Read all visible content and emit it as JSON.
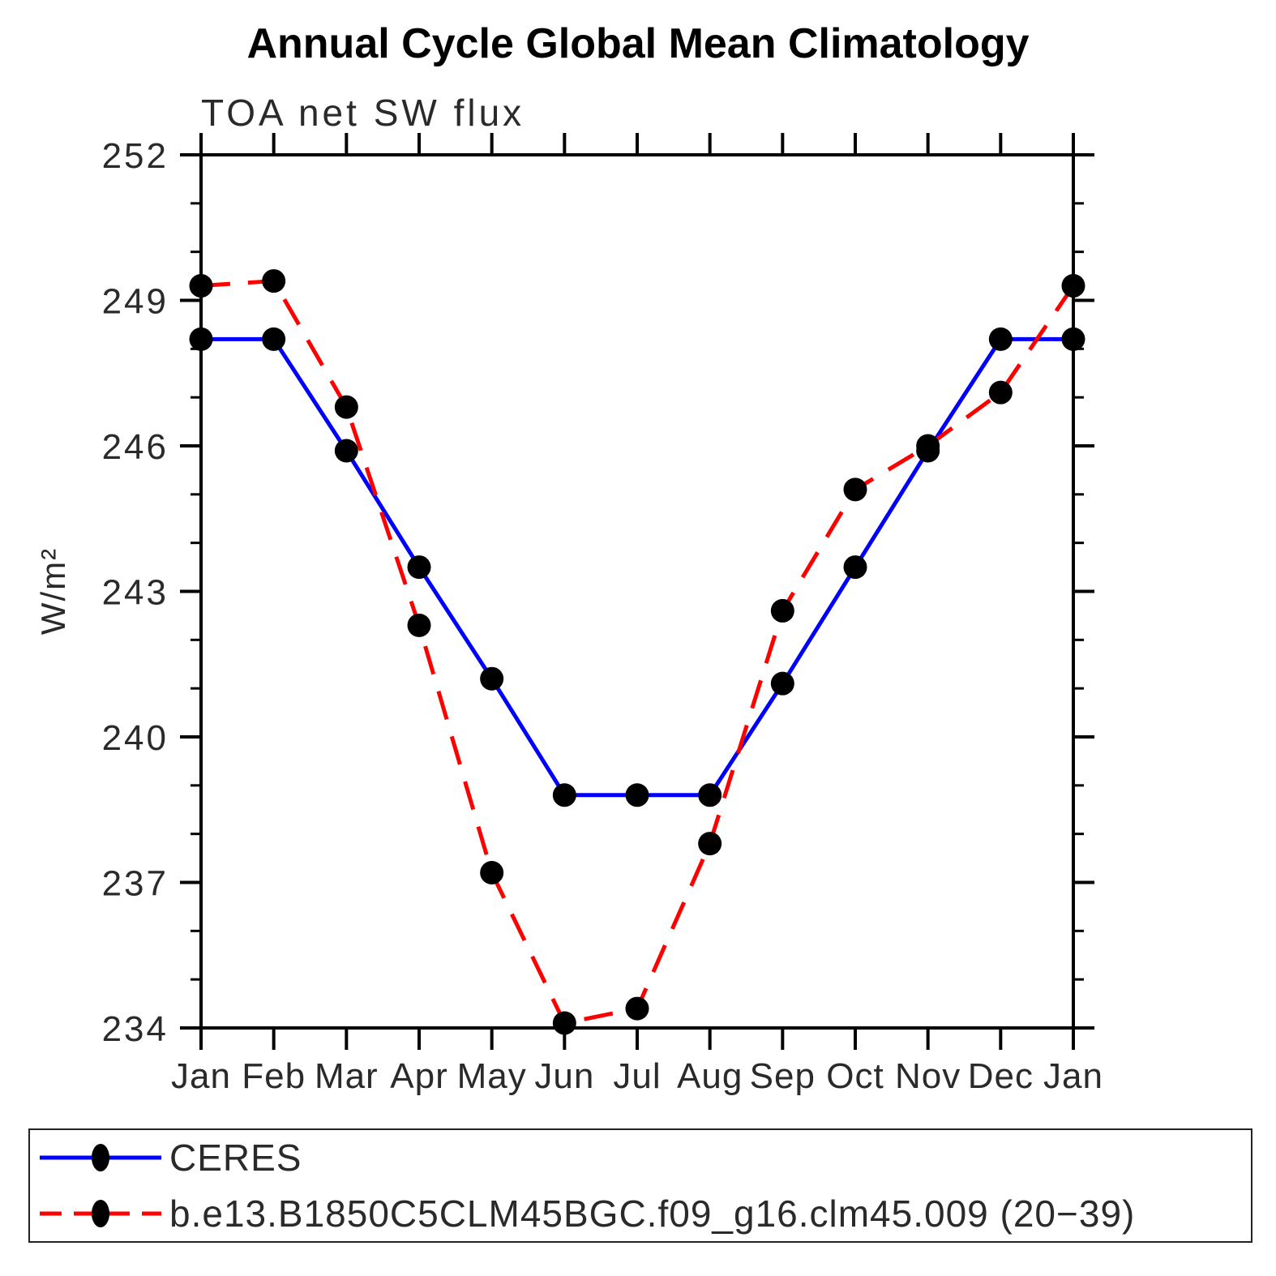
{
  "chart_data": {
    "type": "line",
    "title": "Annual Cycle Global Mean Climatology",
    "subtitle": "TOA net SW flux",
    "ylabel": "W/m²",
    "xlabel": "",
    "categories": [
      "Jan",
      "Feb",
      "Mar",
      "Apr",
      "May",
      "Jun",
      "Jul",
      "Aug",
      "Sep",
      "Oct",
      "Nov",
      "Dec",
      "Jan"
    ],
    "series": [
      {
        "name": "CERES",
        "color": "#0000ff",
        "line_style": "solid",
        "marker": "black-dot",
        "values": [
          248.2,
          248.2,
          245.9,
          243.5,
          241.2,
          238.8,
          238.8,
          238.8,
          241.1,
          243.5,
          245.9,
          248.2,
          248.2
        ]
      },
      {
        "name": "b.e13.B1850C5CLM45BGC.f09_g16.clm45.009 (20−39)",
        "color": "#ff0000",
        "line_style": "dashed",
        "marker": "black-dot",
        "values": [
          249.3,
          249.4,
          246.8,
          242.3,
          237.2,
          234.1,
          234.4,
          237.8,
          242.6,
          245.1,
          246.0,
          247.1,
          249.3
        ]
      }
    ],
    "ylim": [
      234,
      252
    ],
    "ytick_step": 3,
    "yminor_step": 1,
    "ytick_labels": [
      "234",
      "237",
      "240",
      "243",
      "246",
      "249",
      "252"
    ],
    "grid": false,
    "legend_position": "bottom-left-box",
    "marker_color": "#000000",
    "axis_color": "#000000"
  }
}
